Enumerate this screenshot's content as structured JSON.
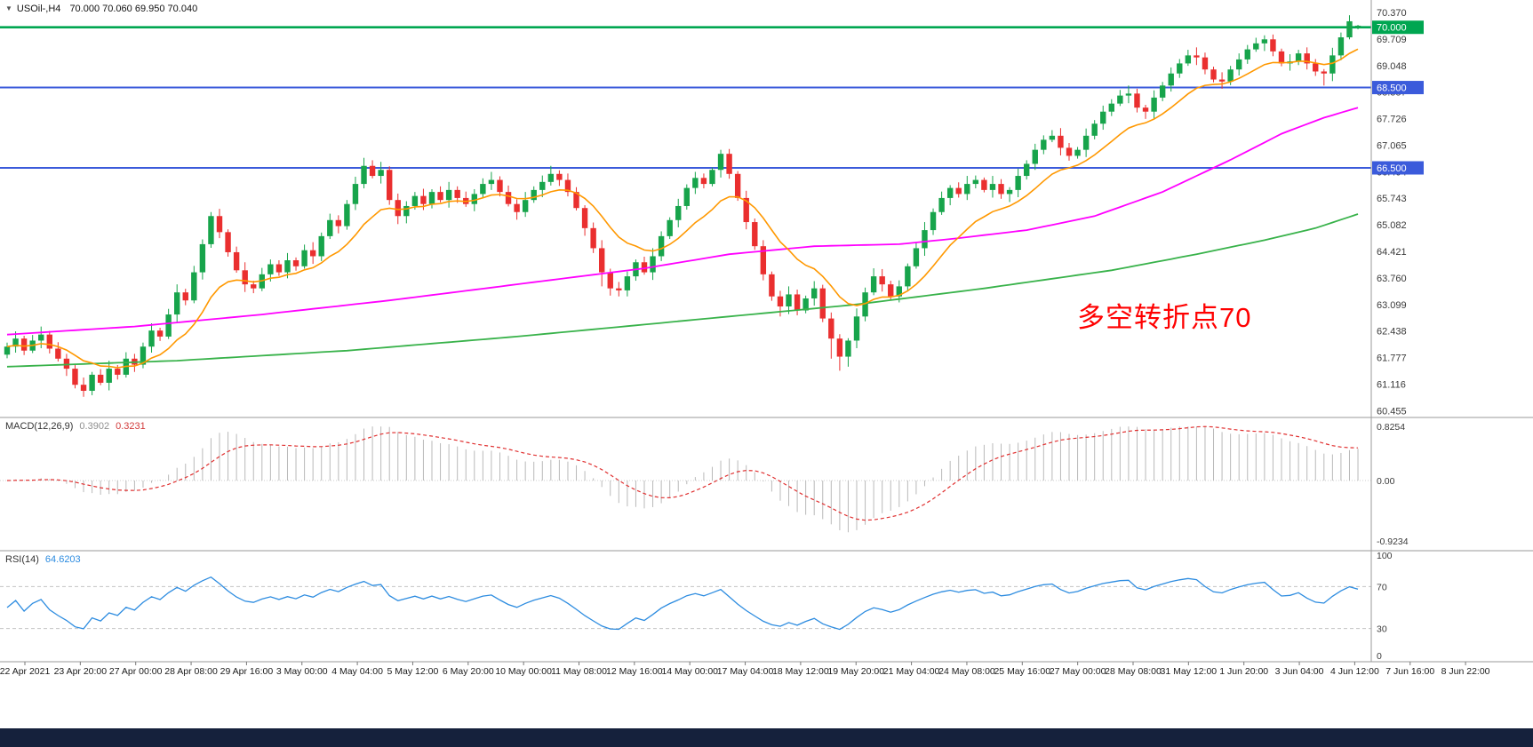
{
  "window": {
    "dropdown_icon": "▼",
    "title_symbol": "USOil-,H4",
    "title_ohlc": "70.000 70.060 69.950 70.040"
  },
  "annotation": {
    "text": "多空转折点70",
    "color": "#ff0000"
  },
  "colors": {
    "background": "#ffffff",
    "candle_up": "#17a44b",
    "candle_down": "#ea2f2f",
    "macd_histogram": "#b9b9b9",
    "macd_signal": "#e03030",
    "rsi_line": "#2d8ce0",
    "level_green": "#00a651",
    "level_blue": "#3b5bdb",
    "taskbar": "#15213c",
    "annotation_red": "#ff0000"
  },
  "chart_data": {
    "type": "candlestick",
    "symbol": "USOil",
    "timeframe": "H4",
    "title": "USOil-,H4 70.000 70.060 69.950 70.040",
    "price_axis": {
      "labels": [
        "70.370",
        "69.709",
        "69.048",
        "68.387",
        "67.726",
        "67.065",
        "66.404",
        "65.743",
        "65.082",
        "64.421",
        "63.760",
        "63.099",
        "62.438",
        "61.777",
        "61.116",
        "60.455"
      ]
    },
    "hlines": [
      {
        "price": 70.0,
        "label": "70.000",
        "color": "#00a651",
        "width": 2.6
      },
      {
        "price": 68.5,
        "label": "68.500",
        "color": "#3b5bdb",
        "width": 2
      },
      {
        "price": 66.5,
        "label": "66.500",
        "color": "#3b5bdb",
        "width": 2
      }
    ],
    "ma_lines": {
      "fast": {
        "color": "#ff9800",
        "period": 12
      },
      "mid": {
        "color": "#ff00ff",
        "anchors": [
          [
            0,
            62.35
          ],
          [
            15,
            62.55
          ],
          [
            30,
            62.85
          ],
          [
            45,
            63.2
          ],
          [
            60,
            63.6
          ],
          [
            75,
            64.0
          ],
          [
            85,
            64.35
          ],
          [
            95,
            64.55
          ],
          [
            105,
            64.6
          ],
          [
            112,
            64.75
          ],
          [
            120,
            64.95
          ],
          [
            128,
            65.3
          ],
          [
            136,
            65.9
          ],
          [
            144,
            66.7
          ],
          [
            150,
            67.35
          ],
          [
            155,
            67.75
          ],
          [
            159,
            68.0
          ]
        ]
      },
      "slow": {
        "color": "#38b24a",
        "anchors": [
          [
            0,
            61.55
          ],
          [
            20,
            61.7
          ],
          [
            40,
            61.95
          ],
          [
            60,
            62.3
          ],
          [
            80,
            62.7
          ],
          [
            100,
            63.1
          ],
          [
            115,
            63.5
          ],
          [
            130,
            63.95
          ],
          [
            140,
            64.35
          ],
          [
            148,
            64.7
          ],
          [
            154,
            65.0
          ],
          [
            159,
            65.35
          ]
        ]
      }
    },
    "macd": {
      "label": "MACD(12,26,9)",
      "value_main": "0.3902",
      "value_signal": "0.3231",
      "params": [
        12,
        26,
        9
      ],
      "scale": [
        "0.8254",
        "0.00",
        "-0.9234"
      ],
      "range": [
        -0.9234,
        0.8254
      ]
    },
    "rsi": {
      "label": "RSI(14)",
      "value": "64.6203",
      "period": 14,
      "levels": [
        70,
        30
      ],
      "scale": [
        "100",
        "70",
        "30",
        "0"
      ]
    },
    "time_axis": {
      "labels": [
        "22 Apr 2021",
        "23 Apr 20:00",
        "27 Apr 00:00",
        "28 Apr 08:00",
        "29 Apr 16:00",
        "3 May 00:00",
        "4 May 04:00",
        "5 May 12:00",
        "6 May 20:00",
        "10 May 00:00",
        "11 May 08:00",
        "12 May 16:00",
        "14 May 00:00",
        "17 May 04:00",
        "18 May 12:00",
        "19 May 20:00",
        "21 May 04:00",
        "24 May 08:00",
        "25 May 16:00",
        "27 May 00:00",
        "28 May 08:00",
        "31 May 12:00",
        "1 Jun 20:00",
        "3 Jun 04:00",
        "4 Jun 12:00",
        "7 Jun 16:00",
        "8 Jun 22:00"
      ]
    },
    "candles": [
      [
        61.85,
        62.15,
        61.76,
        62.05
      ],
      [
        62.05,
        62.43,
        61.9,
        62.25
      ],
      [
        62.25,
        62.32,
        61.84,
        61.95
      ],
      [
        61.95,
        62.34,
        61.89,
        62.2
      ],
      [
        62.2,
        62.55,
        62.01,
        62.35
      ],
      [
        62.35,
        62.44,
        61.88,
        62.0
      ],
      [
        62.0,
        62.16,
        61.68,
        61.75
      ],
      [
        61.75,
        61.87,
        61.32,
        61.5
      ],
      [
        61.5,
        61.6,
        61.01,
        61.1
      ],
      [
        61.1,
        61.28,
        60.8,
        60.95
      ],
      [
        60.95,
        61.42,
        60.84,
        61.35
      ],
      [
        61.35,
        61.49,
        61.09,
        61.15
      ],
      [
        61.15,
        61.7,
        60.96,
        61.5
      ],
      [
        61.5,
        61.59,
        61.23,
        61.35
      ],
      [
        61.35,
        61.91,
        61.28,
        61.75
      ],
      [
        61.75,
        61.87,
        61.42,
        61.6
      ],
      [
        61.6,
        62.15,
        61.51,
        62.05
      ],
      [
        62.05,
        62.63,
        61.9,
        62.45
      ],
      [
        62.45,
        62.52,
        62.19,
        62.3
      ],
      [
        62.3,
        62.99,
        62.24,
        62.85
      ],
      [
        62.85,
        63.6,
        62.66,
        63.4
      ],
      [
        63.4,
        63.49,
        63.08,
        63.2
      ],
      [
        63.2,
        64.06,
        63.13,
        63.9
      ],
      [
        63.9,
        64.72,
        63.72,
        64.6
      ],
      [
        64.6,
        65.4,
        64.51,
        65.3
      ],
      [
        65.3,
        65.48,
        64.75,
        64.9
      ],
      [
        64.9,
        64.97,
        64.29,
        64.4
      ],
      [
        64.4,
        64.54,
        63.89,
        63.95
      ],
      [
        63.95,
        64.15,
        63.41,
        63.6
      ],
      [
        63.6,
        63.69,
        63.38,
        63.5
      ],
      [
        63.5,
        64.01,
        63.43,
        63.85
      ],
      [
        63.85,
        64.22,
        63.67,
        64.1
      ],
      [
        64.1,
        64.2,
        63.81,
        63.9
      ],
      [
        63.9,
        64.38,
        63.75,
        64.2
      ],
      [
        64.2,
        64.27,
        63.94,
        64.05
      ],
      [
        64.05,
        64.59,
        63.99,
        64.45
      ],
      [
        64.45,
        64.65,
        64.11,
        64.3
      ],
      [
        64.3,
        64.89,
        64.18,
        64.8
      ],
      [
        64.8,
        65.36,
        64.73,
        65.2
      ],
      [
        65.2,
        65.32,
        64.87,
        65.05
      ],
      [
        65.05,
        65.7,
        64.96,
        65.6
      ],
      [
        65.6,
        66.28,
        65.45,
        66.1
      ],
      [
        66.1,
        66.75,
        65.99,
        66.55
      ],
      [
        66.55,
        66.69,
        66.24,
        66.3
      ],
      [
        66.3,
        66.65,
        66.11,
        66.45
      ],
      [
        66.45,
        66.54,
        65.58,
        65.7
      ],
      [
        65.7,
        65.86,
        65.1,
        65.3
      ],
      [
        65.3,
        65.67,
        65.12,
        65.55
      ],
      [
        65.55,
        65.9,
        65.46,
        65.8
      ],
      [
        65.8,
        65.98,
        65.45,
        65.6
      ],
      [
        65.6,
        65.97,
        65.49,
        65.9
      ],
      [
        65.9,
        66.04,
        65.64,
        65.7
      ],
      [
        65.7,
        66.15,
        65.51,
        65.95
      ],
      [
        65.95,
        66.04,
        65.63,
        65.75
      ],
      [
        65.75,
        65.91,
        65.53,
        65.6
      ],
      [
        65.6,
        65.97,
        65.42,
        65.85
      ],
      [
        65.85,
        66.24,
        65.76,
        66.1
      ],
      [
        66.1,
        66.4,
        65.95,
        66.2
      ],
      [
        66.2,
        66.29,
        65.79,
        65.9
      ],
      [
        65.9,
        66.06,
        65.54,
        65.6
      ],
      [
        65.6,
        65.72,
        65.21,
        65.4
      ],
      [
        65.4,
        65.9,
        65.28,
        65.7
      ],
      [
        65.7,
        66.04,
        65.63,
        65.95
      ],
      [
        65.95,
        66.31,
        65.77,
        66.15
      ],
      [
        66.15,
        66.55,
        66.06,
        66.35
      ],
      [
        66.35,
        66.44,
        66.05,
        66.2
      ],
      [
        66.2,
        66.36,
        65.79,
        65.9
      ],
      [
        65.9,
        66.02,
        65.44,
        65.5
      ],
      [
        65.5,
        65.57,
        64.81,
        65.0
      ],
      [
        65.0,
        65.14,
        64.38,
        64.5
      ],
      [
        64.5,
        64.7,
        63.55,
        63.9
      ],
      [
        63.9,
        63.99,
        63.32,
        63.5
      ],
      [
        63.5,
        63.66,
        63.3,
        63.45
      ],
      [
        63.45,
        63.92,
        63.3,
        63.8
      ],
      [
        63.8,
        64.22,
        63.69,
        64.15
      ],
      [
        64.15,
        64.29,
        63.84,
        63.9
      ],
      [
        63.9,
        64.5,
        63.71,
        64.3
      ],
      [
        64.3,
        64.92,
        64.18,
        64.8
      ],
      [
        64.8,
        65.27,
        64.73,
        65.2
      ],
      [
        65.2,
        65.73,
        65.02,
        65.55
      ],
      [
        65.55,
        66.09,
        65.46,
        66.0
      ],
      [
        66.0,
        66.4,
        65.85,
        66.25
      ],
      [
        66.25,
        66.36,
        65.99,
        66.1
      ],
      [
        66.1,
        66.51,
        66.04,
        66.45
      ],
      [
        66.45,
        66.95,
        66.26,
        66.85
      ],
      [
        66.85,
        66.97,
        66.23,
        66.35
      ],
      [
        66.35,
        66.42,
        65.68,
        65.75
      ],
      [
        65.75,
        65.93,
        64.97,
        65.15
      ],
      [
        65.15,
        65.24,
        64.46,
        64.55
      ],
      [
        64.55,
        64.7,
        63.7,
        63.85
      ],
      [
        63.85,
        63.92,
        63.19,
        63.3
      ],
      [
        63.3,
        63.44,
        62.8,
        63.05
      ],
      [
        63.05,
        63.55,
        62.86,
        63.35
      ],
      [
        63.35,
        63.47,
        62.83,
        62.95
      ],
      [
        62.95,
        63.32,
        62.88,
        63.25
      ],
      [
        63.25,
        63.68,
        63.07,
        63.5
      ],
      [
        63.5,
        63.59,
        62.66,
        62.75
      ],
      [
        62.75,
        62.9,
        61.75,
        62.25
      ],
      [
        62.25,
        62.36,
        61.45,
        61.8
      ],
      [
        61.8,
        62.26,
        61.55,
        62.2
      ],
      [
        62.2,
        63.0,
        62.01,
        62.8
      ],
      [
        62.8,
        63.52,
        62.68,
        63.4
      ],
      [
        63.4,
        64.0,
        63.33,
        63.8
      ],
      [
        63.8,
        63.98,
        63.42,
        63.6
      ],
      [
        63.6,
        63.69,
        63.21,
        63.3
      ],
      [
        63.3,
        63.7,
        63.15,
        63.55
      ],
      [
        63.55,
        64.12,
        63.44,
        64.05
      ],
      [
        64.05,
        64.64,
        63.99,
        64.5
      ],
      [
        64.5,
        65.15,
        64.31,
        64.95
      ],
      [
        64.95,
        65.49,
        64.83,
        65.4
      ],
      [
        65.4,
        65.91,
        65.33,
        65.75
      ],
      [
        65.75,
        66.07,
        65.57,
        66.0
      ],
      [
        66.0,
        66.14,
        65.76,
        65.85
      ],
      [
        65.85,
        66.3,
        65.7,
        66.1
      ],
      [
        66.1,
        66.31,
        65.99,
        66.2
      ],
      [
        66.2,
        66.26,
        65.89,
        65.95
      ],
      [
        65.95,
        66.3,
        65.76,
        66.1
      ],
      [
        66.1,
        66.22,
        65.73,
        65.85
      ],
      [
        65.85,
        66.02,
        65.65,
        65.95
      ],
      [
        65.95,
        66.48,
        65.77,
        66.3
      ],
      [
        66.3,
        66.69,
        66.21,
        66.6
      ],
      [
        66.6,
        67.1,
        66.45,
        66.95
      ],
      [
        66.95,
        67.31,
        66.84,
        67.2
      ],
      [
        67.2,
        67.44,
        67.14,
        67.3
      ],
      [
        67.3,
        67.49,
        66.81,
        67.0
      ],
      [
        67.0,
        67.12,
        66.68,
        66.8
      ],
      [
        66.8,
        67.02,
        66.73,
        66.95
      ],
      [
        66.95,
        67.48,
        66.77,
        67.3
      ],
      [
        67.3,
        67.69,
        67.21,
        67.6
      ],
      [
        67.6,
        68.05,
        67.45,
        67.9
      ],
      [
        67.9,
        68.21,
        67.79,
        68.1
      ],
      [
        68.1,
        68.44,
        68.04,
        68.3
      ],
      [
        68.3,
        68.55,
        68.11,
        68.35
      ],
      [
        68.35,
        68.47,
        67.88,
        68.0
      ],
      [
        68.0,
        68.07,
        67.72,
        67.9
      ],
      [
        67.9,
        68.43,
        67.72,
        68.25
      ],
      [
        68.25,
        68.64,
        68.16,
        68.55
      ],
      [
        68.55,
        69.0,
        68.4,
        68.85
      ],
      [
        68.85,
        69.21,
        68.74,
        69.1
      ],
      [
        69.1,
        69.44,
        69.04,
        69.3
      ],
      [
        69.3,
        69.5,
        69.06,
        69.25
      ],
      [
        69.25,
        69.37,
        68.83,
        68.95
      ],
      [
        68.95,
        69.02,
        68.63,
        68.7
      ],
      [
        68.7,
        68.88,
        68.47,
        68.65
      ],
      [
        68.65,
        69.04,
        68.56,
        68.95
      ],
      [
        68.95,
        69.35,
        68.8,
        69.2
      ],
      [
        69.2,
        69.56,
        69.09,
        69.45
      ],
      [
        69.45,
        69.74,
        69.39,
        69.6
      ],
      [
        69.6,
        69.8,
        69.41,
        69.7
      ],
      [
        69.7,
        69.82,
        69.28,
        69.4
      ],
      [
        69.4,
        69.47,
        69.03,
        69.1
      ],
      [
        69.1,
        69.33,
        68.92,
        69.15
      ],
      [
        69.15,
        69.44,
        69.06,
        69.35
      ],
      [
        69.35,
        69.5,
        68.95,
        69.1
      ],
      [
        69.1,
        69.21,
        68.79,
        68.9
      ],
      [
        68.9,
        68.96,
        68.55,
        68.85
      ],
      [
        68.85,
        69.49,
        68.66,
        69.3
      ],
      [
        69.3,
        69.87,
        69.18,
        69.75
      ],
      [
        69.75,
        70.3,
        69.7,
        70.15
      ],
      [
        70.0,
        70.06,
        69.95,
        70.04
      ]
    ]
  }
}
